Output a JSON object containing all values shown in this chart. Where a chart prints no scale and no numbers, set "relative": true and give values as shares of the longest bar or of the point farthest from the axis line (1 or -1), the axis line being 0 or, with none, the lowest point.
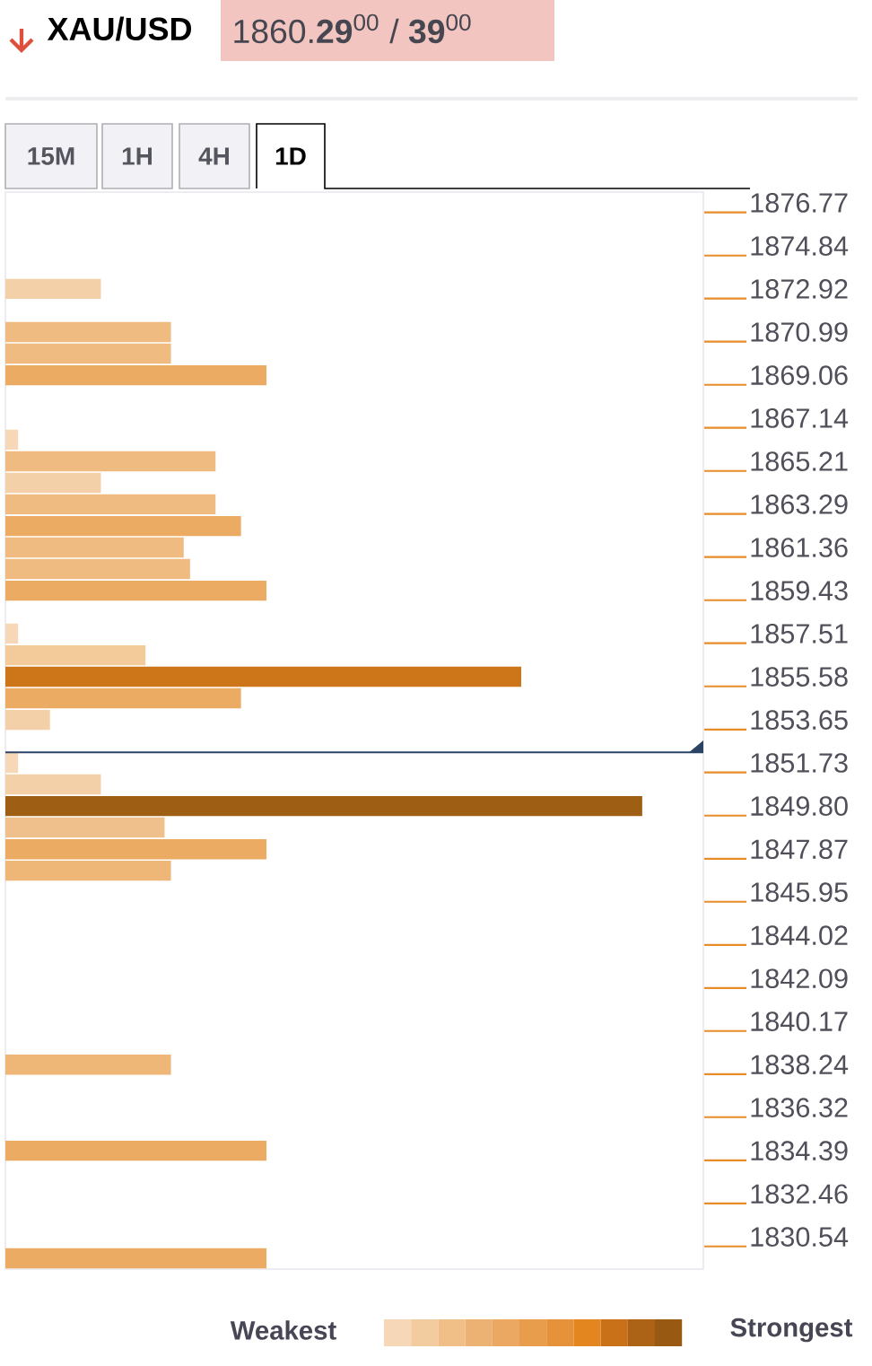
{
  "chart_data": {
    "type": "bar",
    "orientation": "horizontal",
    "relative": true,
    "title": "XAU/USD",
    "subtitle": "1860.**29**$^{00}$ / **39**$^{00}$",
    "annotations": [
      "15M",
      "1H",
      "4H",
      "1D",
      "Weakest",
      "Strongest"
    ],
    "x": [
      1872.92,
      1870.99,
      1870.03,
      1869.06,
      1866.18,
      1865.21,
      1864.25,
      1863.29,
      1862.32,
      1861.36,
      1860.4,
      1859.43,
      1857.51,
      1856.54,
      1855.58,
      1854.62,
      1853.65,
      1851.73,
      1850.77,
      1849.8,
      1848.84,
      1847.87,
      1846.91,
      1838.24,
      1834.39,
      1829.58
    ],
    "values": [
      0.15,
      0.26,
      0.26,
      0.41,
      0.02,
      0.33,
      0.15,
      0.33,
      0.37,
      0.28,
      0.29,
      0.41,
      0.02,
      0.22,
      0.81,
      0.37,
      0.07,
      0.02,
      0.15,
      1,
      0.25,
      0.41,
      0.26,
      0.26,
      0.41,
      0.41
    ],
    "colors": [
      "#f3d0a8",
      "#efbb80",
      "#efbb80",
      "#ecab63",
      "#f6d8b8",
      "#efbb80",
      "#f3d0a8",
      "#efbb80",
      "#ecab63",
      "#efbb80",
      "#efbb80",
      "#ecab63",
      "#f6d8b8",
      "#f3ca9a",
      "#cc7519",
      "#ecab63",
      "#f3d0a8",
      "#f6d8b8",
      "#f3d0a8",
      "#9e5e14",
      "#f0c08c",
      "#ecab63",
      "#eeb677",
      "#eeb677",
      "#ecab63",
      "#ecab63"
    ],
    "ylim": [
      1829.1,
      1877.25
    ],
    "yticks": [
      {
        "value": 1876.77,
        "label": "1876.77"
      },
      {
        "value": 1874.84,
        "label": "1874.84"
      },
      {
        "value": 1872.92,
        "label": "1872.92"
      },
      {
        "value": 1870.99,
        "label": "1870.99"
      },
      {
        "value": 1869.06,
        "label": "1869.06"
      },
      {
        "value": 1867.14,
        "label": "1867.14"
      },
      {
        "value": 1865.21,
        "label": "1865.21"
      },
      {
        "value": 1863.29,
        "label": "1863.29"
      },
      {
        "value": 1861.36,
        "label": "1861.36"
      },
      {
        "value": 1859.43,
        "label": "1859.43"
      },
      {
        "value": 1857.51,
        "label": "1857.51"
      },
      {
        "value": 1855.58,
        "label": "1855.58"
      },
      {
        "value": 1853.65,
        "label": "1853.65"
      },
      {
        "value": 1851.73,
        "label": "1851.73"
      },
      {
        "value": 1849.8,
        "label": "1849.80"
      },
      {
        "value": 1847.87,
        "label": "1847.87"
      },
      {
        "value": 1845.95,
        "label": "1845.95"
      },
      {
        "value": 1844.02,
        "label": "1844.02"
      },
      {
        "value": 1842.09,
        "label": "1842.09"
      },
      {
        "value": 1840.17,
        "label": "1840.17"
      },
      {
        "value": 1838.24,
        "label": "1838.24"
      },
      {
        "value": 1836.32,
        "label": "1836.32"
      },
      {
        "value": 1834.39,
        "label": "1834.39"
      },
      {
        "value": 1832.46,
        "label": "1832.46"
      },
      {
        "value": 1830.54,
        "label": "1830.54"
      }
    ],
    "ref_lines": [
      {
        "axis": "y",
        "value": 1852.2,
        "color": "#2b4466"
      }
    ]
  }
}
